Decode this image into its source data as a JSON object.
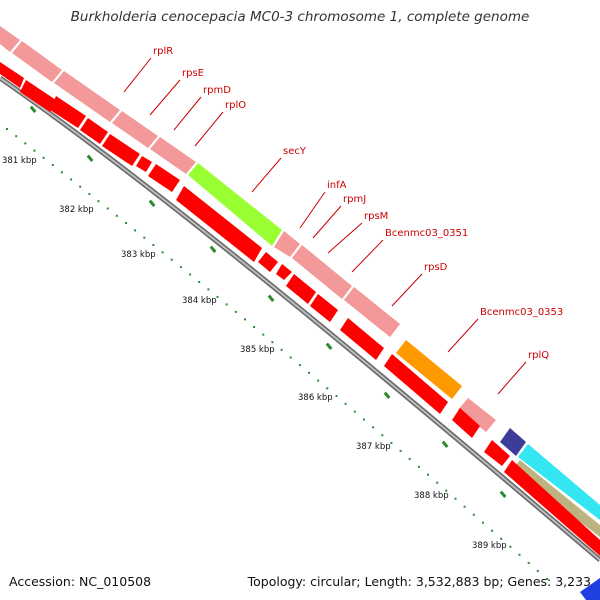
{
  "title": "Burkholderia cenocepacia MC0-3 chromosome 1, complete genome",
  "footer": {
    "accession": "Accession: NC_010508",
    "summary": "Topology: circular; Length: 3,532,883 bp; Genes: 3,233"
  },
  "colors": {
    "gene_arrow": "#ff0000",
    "cds_default": "#f4999a",
    "highlight_green": "#99ff33",
    "highlight_orange": "#ff9900",
    "highlight_purple": "#3d3d99",
    "highlight_cyan": "#33e6f2",
    "highlight_olive": "#bdb380",
    "backbone": "#888888",
    "tick": "#2d8a2d",
    "label": "#cc0000"
  },
  "ticks": [
    "381 kbp",
    "382 kbp",
    "383 kbp",
    "384 kbp",
    "385 kbp",
    "386 kbp",
    "387 kbp",
    "388 kbp",
    "389 kbp"
  ],
  "gene_labels": [
    "rplR",
    "rpsE",
    "rpmD",
    "rplO",
    "secY",
    "infA",
    "rpmJ",
    "rpsM",
    "Bcenmc03_0351",
    "rpsD",
    "Bcenmc03_0353",
    "rplQ"
  ]
}
